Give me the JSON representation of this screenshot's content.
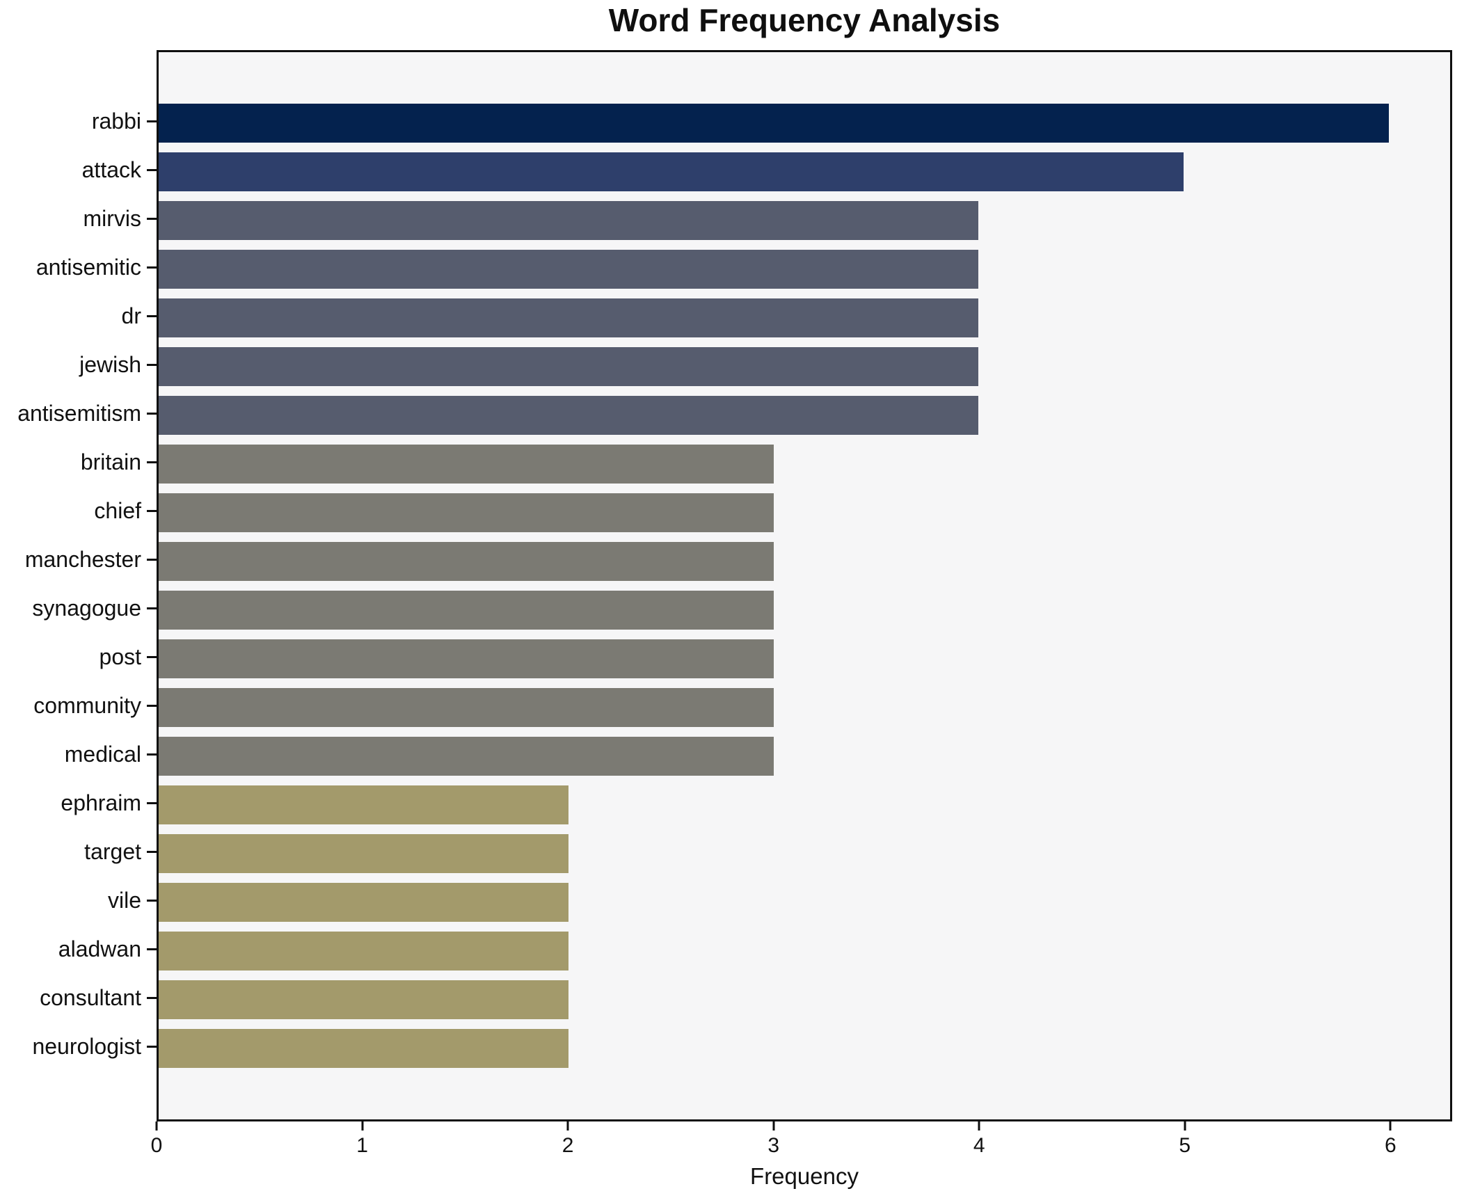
{
  "chart_data": {
    "type": "bar",
    "orientation": "horizontal",
    "title": "Word Frequency Analysis",
    "xlabel": "Frequency",
    "ylabel": "",
    "categories": [
      "rabbi",
      "attack",
      "mirvis",
      "antisemitic",
      "dr",
      "jewish",
      "antisemitism",
      "britain",
      "chief",
      "manchester",
      "synagogue",
      "post",
      "community",
      "medical",
      "ephraim",
      "target",
      "vile",
      "aladwan",
      "consultant",
      "neurologist"
    ],
    "values": [
      6,
      5,
      4,
      4,
      4,
      4,
      4,
      3,
      3,
      3,
      3,
      3,
      3,
      3,
      2,
      2,
      2,
      2,
      2,
      2
    ],
    "xticks": [
      0,
      1,
      2,
      3,
      4,
      5,
      6
    ],
    "xlim": [
      0,
      6.3
    ],
    "grid": false,
    "legend_position": "none",
    "colors": {
      "value_colors": {
        "6": "#04224e",
        "5": "#2e3f6b",
        "4": "#565c6e",
        "3": "#7b7a73",
        "2": "#a39a6b"
      },
      "plot_background": "#f6f6f7",
      "figure_background": "#ffffff",
      "spine": "#0f0f0f",
      "text": "#0f0f0f"
    }
  }
}
